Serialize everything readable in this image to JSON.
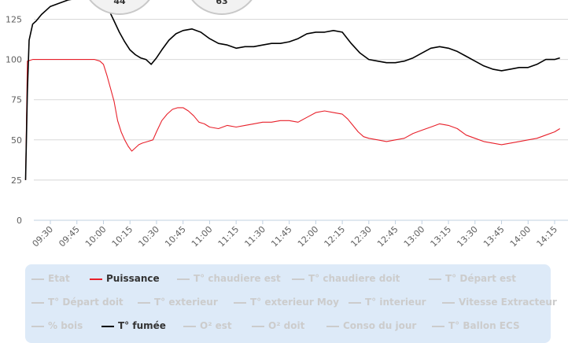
{
  "chart_data": {
    "type": "line",
    "title": "",
    "xlabel": "",
    "ylabel": "",
    "ylim": [
      0,
      137
    ],
    "yticks": [
      "0",
      "25",
      "50",
      "75",
      "100",
      "125"
    ],
    "xticks": [
      "09:30",
      "09:45",
      "10:00",
      "10:15",
      "10:30",
      "10:45",
      "11:00",
      "11:15",
      "11:30",
      "11:45",
      "12:00",
      "12:15",
      "12:30",
      "12:45",
      "13:00",
      "13:15",
      "13:30",
      "13:45",
      "14:00",
      "14:15"
    ],
    "x_range_minutes": [
      9.3,
      14.3
    ],
    "gauges": [
      "44",
      "63"
    ],
    "series": [
      {
        "name": "T° fumée",
        "color": "#000000",
        "points": [
          [
            "09:16",
            25
          ],
          [
            "09:17",
            80
          ],
          [
            "09:18",
            112
          ],
          [
            "09:20",
            122
          ],
          [
            "09:22",
            124
          ],
          [
            "09:25",
            128
          ],
          [
            "09:28",
            131
          ],
          [
            "09:30",
            133
          ],
          [
            "09:35",
            135
          ],
          [
            "09:40",
            137
          ],
          [
            "09:45",
            138
          ],
          [
            "09:52",
            138
          ],
          [
            "09:57",
            137
          ],
          [
            "10:00",
            135
          ],
          [
            "10:03",
            131
          ],
          [
            "10:06",
            124
          ],
          [
            "10:09",
            117
          ],
          [
            "10:12",
            111
          ],
          [
            "10:15",
            106
          ],
          [
            "10:18",
            103
          ],
          [
            "10:21",
            101
          ],
          [
            "10:24",
            100
          ],
          [
            "10:27",
            97
          ],
          [
            "10:30",
            101
          ],
          [
            "10:33",
            106
          ],
          [
            "10:37",
            112
          ],
          [
            "10:41",
            116
          ],
          [
            "10:45",
            118
          ],
          [
            "10:50",
            119
          ],
          [
            "10:55",
            117
          ],
          [
            "11:00",
            113
          ],
          [
            "11:05",
            110
          ],
          [
            "11:10",
            109
          ],
          [
            "11:15",
            107
          ],
          [
            "11:20",
            108
          ],
          [
            "11:25",
            108
          ],
          [
            "11:30",
            109
          ],
          [
            "11:35",
            110
          ],
          [
            "11:40",
            110
          ],
          [
            "11:45",
            111
          ],
          [
            "11:50",
            113
          ],
          [
            "11:55",
            116
          ],
          [
            "12:00",
            117
          ],
          [
            "12:05",
            117
          ],
          [
            "12:10",
            118
          ],
          [
            "12:15",
            117
          ],
          [
            "12:20",
            110
          ],
          [
            "12:25",
            104
          ],
          [
            "12:30",
            100
          ],
          [
            "12:35",
            99
          ],
          [
            "12:40",
            98
          ],
          [
            "12:45",
            98
          ],
          [
            "12:50",
            99
          ],
          [
            "12:55",
            101
          ],
          [
            "13:00",
            104
          ],
          [
            "13:05",
            107
          ],
          [
            "13:10",
            108
          ],
          [
            "13:15",
            107
          ],
          [
            "13:20",
            105
          ],
          [
            "13:25",
            102
          ],
          [
            "13:30",
            99
          ],
          [
            "13:35",
            96
          ],
          [
            "13:40",
            94
          ],
          [
            "13:45",
            93
          ],
          [
            "13:50",
            94
          ],
          [
            "13:55",
            95
          ],
          [
            "14:00",
            95
          ],
          [
            "14:05",
            97
          ],
          [
            "14:10",
            100
          ],
          [
            "14:15",
            100
          ],
          [
            "14:18",
            101
          ]
        ]
      },
      {
        "name": "Puissance",
        "color": "#e8202a",
        "points": [
          [
            "09:16",
            25
          ],
          [
            "09:17",
            99
          ],
          [
            "09:20",
            100
          ],
          [
            "09:25",
            100
          ],
          [
            "09:30",
            100
          ],
          [
            "09:40",
            100
          ],
          [
            "09:50",
            100
          ],
          [
            "09:55",
            100
          ],
          [
            "09:58",
            99
          ],
          [
            "10:00",
            97
          ],
          [
            "10:02",
            90
          ],
          [
            "10:04",
            82
          ],
          [
            "10:06",
            74
          ],
          [
            "10:08",
            62
          ],
          [
            "10:10",
            55
          ],
          [
            "10:12",
            50
          ],
          [
            "10:14",
            46
          ],
          [
            "10:16",
            43
          ],
          [
            "10:18",
            45
          ],
          [
            "10:20",
            47
          ],
          [
            "10:22",
            48
          ],
          [
            "10:25",
            49
          ],
          [
            "10:28",
            50
          ],
          [
            "10:30",
            55
          ],
          [
            "10:33",
            62
          ],
          [
            "10:36",
            66
          ],
          [
            "10:39",
            69
          ],
          [
            "10:42",
            70
          ],
          [
            "10:45",
            70
          ],
          [
            "10:48",
            68
          ],
          [
            "10:51",
            65
          ],
          [
            "10:54",
            61
          ],
          [
            "10:57",
            60
          ],
          [
            "11:00",
            58
          ],
          [
            "11:05",
            57
          ],
          [
            "11:10",
            59
          ],
          [
            "11:15",
            58
          ],
          [
            "11:20",
            59
          ],
          [
            "11:25",
            60
          ],
          [
            "11:30",
            61
          ],
          [
            "11:35",
            61
          ],
          [
            "11:40",
            62
          ],
          [
            "11:45",
            62
          ],
          [
            "11:50",
            61
          ],
          [
            "11:55",
            64
          ],
          [
            "12:00",
            67
          ],
          [
            "12:05",
            68
          ],
          [
            "12:10",
            67
          ],
          [
            "12:15",
            66
          ],
          [
            "12:18",
            63
          ],
          [
            "12:21",
            59
          ],
          [
            "12:24",
            55
          ],
          [
            "12:27",
            52
          ],
          [
            "12:30",
            51
          ],
          [
            "12:35",
            50
          ],
          [
            "12:40",
            49
          ],
          [
            "12:45",
            50
          ],
          [
            "12:50",
            51
          ],
          [
            "12:55",
            54
          ],
          [
            "13:00",
            56
          ],
          [
            "13:05",
            58
          ],
          [
            "13:10",
            60
          ],
          [
            "13:15",
            59
          ],
          [
            "13:20",
            57
          ],
          [
            "13:25",
            53
          ],
          [
            "13:30",
            51
          ],
          [
            "13:35",
            49
          ],
          [
            "13:40",
            48
          ],
          [
            "13:45",
            47
          ],
          [
            "13:50",
            48
          ],
          [
            "13:55",
            49
          ],
          [
            "14:00",
            50
          ],
          [
            "14:05",
            51
          ],
          [
            "14:10",
            53
          ],
          [
            "14:15",
            55
          ],
          [
            "14:18",
            57
          ]
        ]
      }
    ],
    "legend_position": "bottom"
  },
  "legend": {
    "rows": [
      [
        {
          "label": "Etat",
          "active": false,
          "color": "#cccccc"
        },
        {
          "label": "Puissance",
          "active": true,
          "color": "#e8202a"
        },
        {
          "label": "T° chaudiere est",
          "active": false,
          "color": "#cccccc"
        },
        {
          "label": "T° chaudiere doit",
          "active": false,
          "color": "#cccccc"
        },
        {
          "label": "T° Départ est",
          "active": false,
          "color": "#cccccc"
        }
      ],
      [
        {
          "label": "T° Départ doit",
          "active": false,
          "color": "#cccccc"
        },
        {
          "label": "T° exterieur",
          "active": false,
          "color": "#cccccc"
        },
        {
          "label": "T° exterieur Moy",
          "active": false,
          "color": "#cccccc"
        },
        {
          "label": "T° interieur",
          "active": false,
          "color": "#cccccc"
        },
        {
          "label": "Vitesse Extracteur",
          "active": false,
          "color": "#cccccc"
        }
      ],
      [
        {
          "label": "% bois",
          "active": false,
          "color": "#cccccc"
        },
        {
          "label": "T° fumée",
          "active": true,
          "color": "#000000"
        },
        {
          "label": "O² est",
          "active": false,
          "color": "#cccccc"
        },
        {
          "label": "O² doit",
          "active": false,
          "color": "#cccccc"
        },
        {
          "label": "Conso du jour",
          "active": false,
          "color": "#cccccc"
        },
        {
          "label": "T° Ballon ECS",
          "active": false,
          "color": "#cccccc"
        }
      ]
    ]
  }
}
